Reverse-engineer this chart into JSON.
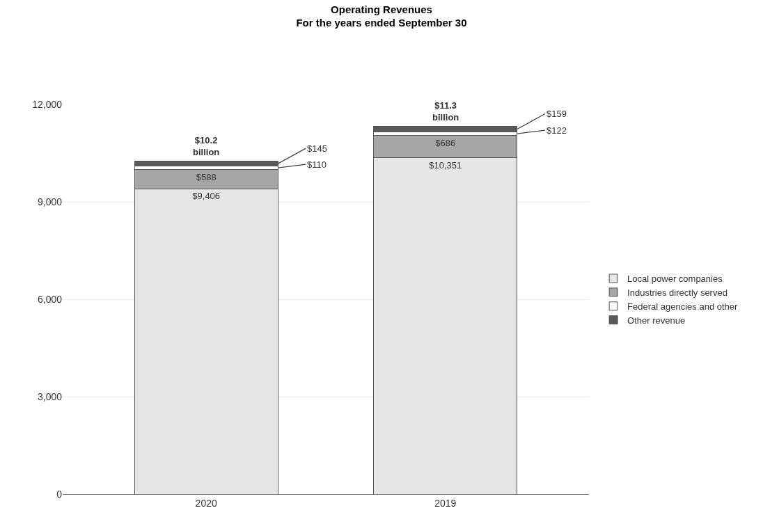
{
  "chart_data": {
    "type": "bar",
    "title": "Operating Revenues\nFor the years ended September 30",
    "categories": [
      "2020",
      "2019"
    ],
    "stacked": true,
    "series": [
      {
        "name": "Local power companies",
        "color": "#e6e6e6",
        "values": [
          9406,
          10351
        ],
        "value_labels": [
          "$9,406",
          "$10,351"
        ]
      },
      {
        "name": "Industries directly served",
        "color": "#a6a6a6",
        "values": [
          588,
          686
        ],
        "value_labels": [
          "$588",
          "$686"
        ]
      },
      {
        "name": "Federal agencies and other",
        "color": "#ffffff",
        "values": [
          110,
          122
        ],
        "value_labels": [
          "$110",
          "$122"
        ]
      },
      {
        "name": "Other revenue",
        "color": "#595959",
        "values": [
          145,
          159
        ],
        "value_labels": [
          "$145",
          "$159"
        ]
      }
    ],
    "totals": [
      "$10.2\nbillion",
      "$11.3\nbillion"
    ],
    "ylim": [
      0,
      12000
    ],
    "yticks": [
      0,
      {
        "value": 3000,
        "label": "3,000"
      },
      {
        "value": 6000,
        "label": "6,000"
      },
      {
        "value": 9000,
        "label": "9,000"
      },
      {
        "value": 12000,
        "label": "12,000"
      }
    ],
    "grid": "y",
    "legend": "right"
  }
}
